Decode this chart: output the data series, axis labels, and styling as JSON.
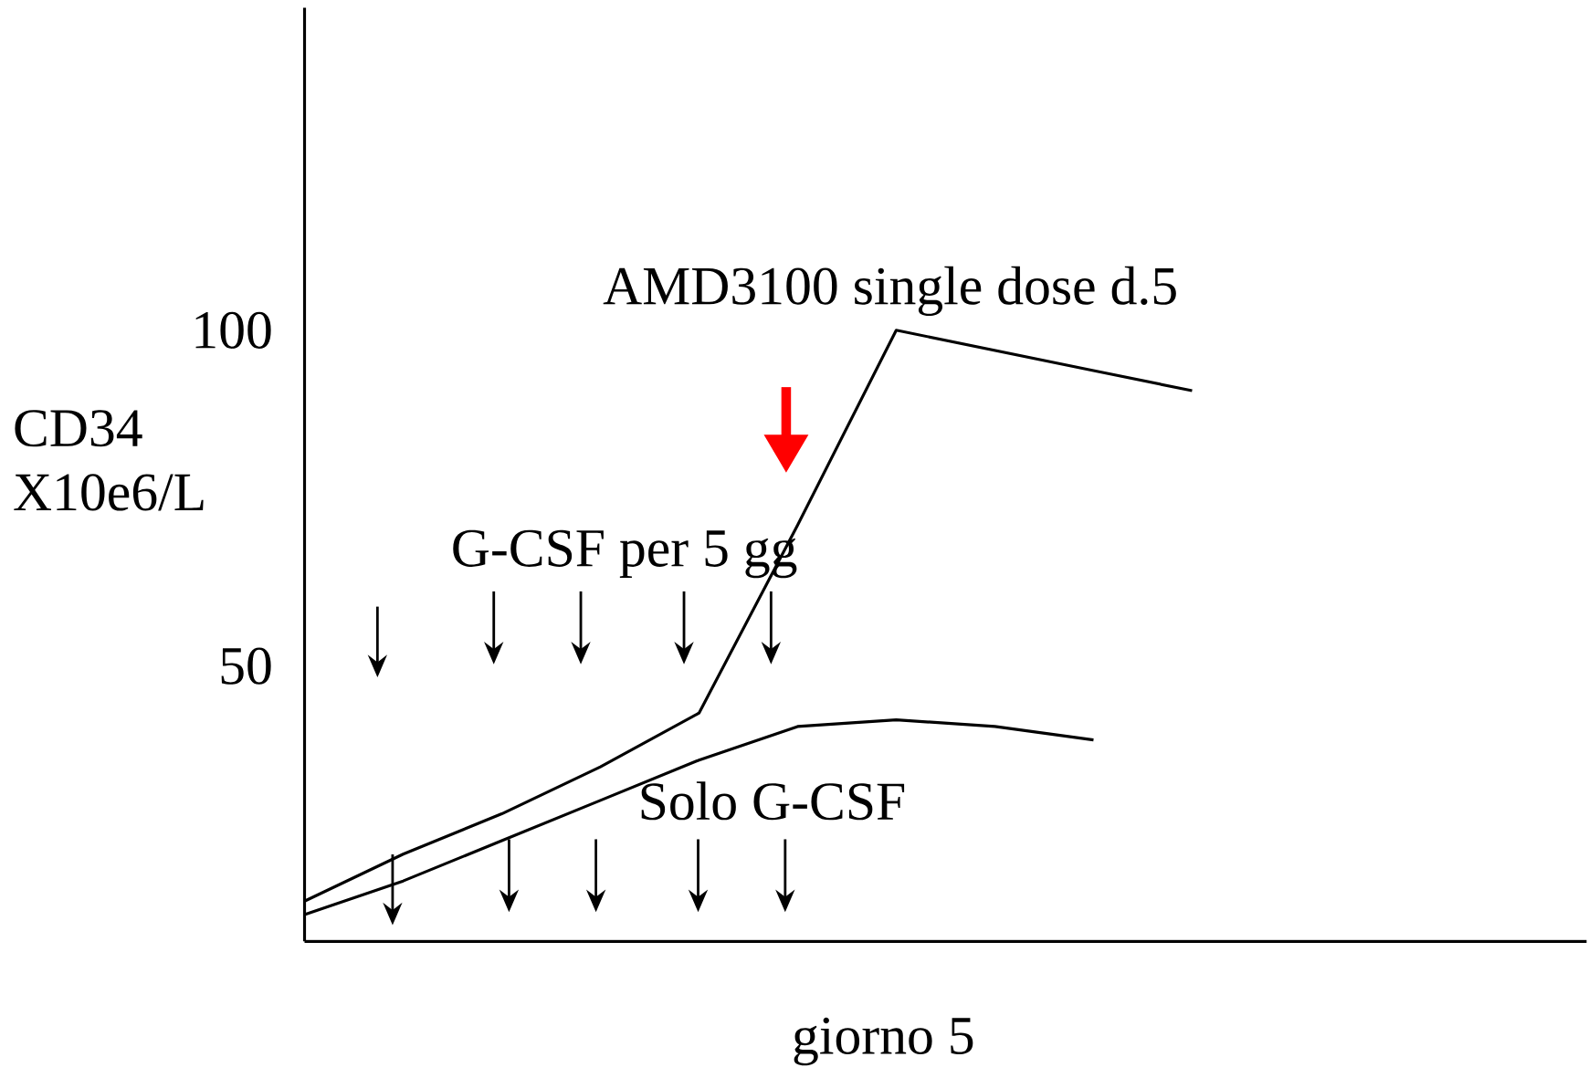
{
  "chart_data": {
    "type": "line",
    "xlabel": "giorno 5",
    "ylabel": "CD34 X10e6/L",
    "annotations": [
      "G-CSF per 5 gg"
    ],
    "categories": [
      null,
      null,
      null,
      null,
      null,
      null,
      null,
      null,
      null,
      null,
      null,
      null,
      null,
      null
    ],
    "series": [
      {
        "name": "AMD3100 single dose d.5",
        "color": "#000000",
        "values": [
          15,
          22,
          28,
          35,
          43,
          71,
          100,
          97,
          94,
          91,
          null,
          null,
          null,
          null
        ]
      },
      {
        "name": "Solo G-CSF",
        "color": "#000000",
        "values": [
          13,
          18,
          24,
          30,
          36,
          41,
          42,
          41,
          39,
          null,
          null,
          null,
          null,
          null
        ]
      }
    ],
    "ylim": [
      9,
      148
    ],
    "yticks": [
      50,
      100
    ],
    "tick_labels": "y",
    "grid": false,
    "legend": false
  }
}
